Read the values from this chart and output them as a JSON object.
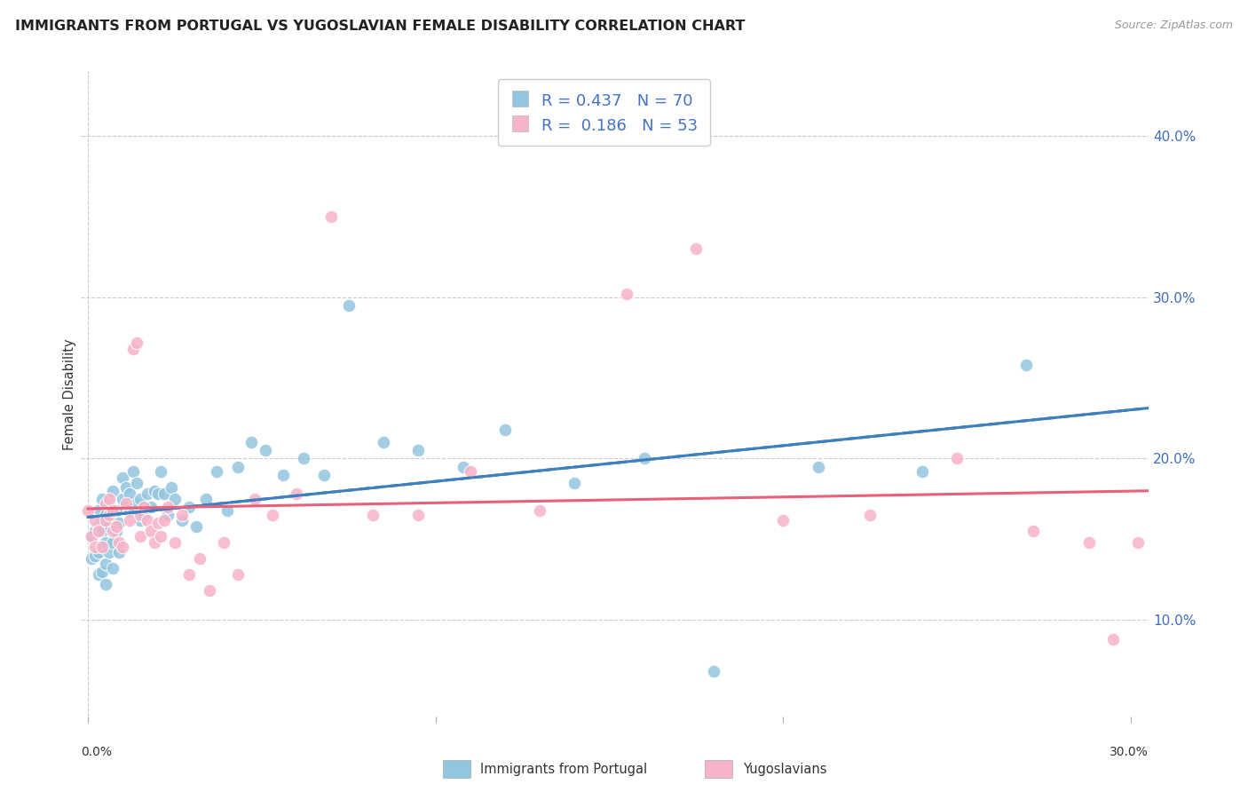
{
  "title": "IMMIGRANTS FROM PORTUGAL VS YUGOSLAVIAN FEMALE DISABILITY CORRELATION CHART",
  "source": "Source: ZipAtlas.com",
  "ylabel": "Female Disability",
  "ytick_labels": [
    "10.0%",
    "20.0%",
    "30.0%",
    "40.0%"
  ],
  "ytick_values": [
    0.1,
    0.2,
    0.3,
    0.4
  ],
  "xtick_labels": [
    "0.0%",
    "30.0%"
  ],
  "xtick_values": [
    0.0,
    0.3
  ],
  "xlim": [
    -0.002,
    0.305
  ],
  "ylim": [
    0.04,
    0.44
  ],
  "legend_label1": "Immigrants from Portugal",
  "legend_label2": "Yugoslavians",
  "R1": 0.437,
  "N1": 70,
  "R2": 0.186,
  "N2": 53,
  "color_blue": "#92c5de",
  "color_pink": "#f7b3c8",
  "color_blue_line": "#3d7fbf",
  "color_pink_line": "#e8607a",
  "color_dashed": "#888888",
  "background": "#ffffff",
  "grid_color": "#cccccc",
  "portugal_x": [
    0.001,
    0.001,
    0.002,
    0.002,
    0.003,
    0.003,
    0.003,
    0.003,
    0.004,
    0.004,
    0.004,
    0.004,
    0.004,
    0.005,
    0.005,
    0.005,
    0.005,
    0.006,
    0.006,
    0.006,
    0.007,
    0.007,
    0.007,
    0.008,
    0.008,
    0.009,
    0.009,
    0.01,
    0.01,
    0.011,
    0.012,
    0.012,
    0.013,
    0.014,
    0.014,
    0.015,
    0.015,
    0.016,
    0.017,
    0.018,
    0.019,
    0.02,
    0.021,
    0.022,
    0.023,
    0.024,
    0.025,
    0.027,
    0.029,
    0.031,
    0.034,
    0.037,
    0.04,
    0.043,
    0.047,
    0.051,
    0.056,
    0.062,
    0.068,
    0.075,
    0.085,
    0.095,
    0.108,
    0.12,
    0.14,
    0.16,
    0.18,
    0.21,
    0.24,
    0.27
  ],
  "portugal_y": [
    0.138,
    0.152,
    0.14,
    0.155,
    0.128,
    0.142,
    0.158,
    0.168,
    0.13,
    0.145,
    0.155,
    0.162,
    0.175,
    0.122,
    0.135,
    0.148,
    0.165,
    0.142,
    0.158,
    0.172,
    0.132,
    0.148,
    0.18,
    0.155,
    0.168,
    0.142,
    0.16,
    0.175,
    0.188,
    0.182,
    0.168,
    0.178,
    0.192,
    0.172,
    0.185,
    0.162,
    0.175,
    0.165,
    0.178,
    0.17,
    0.18,
    0.178,
    0.192,
    0.178,
    0.165,
    0.182,
    0.175,
    0.162,
    0.17,
    0.158,
    0.175,
    0.192,
    0.168,
    0.195,
    0.21,
    0.205,
    0.19,
    0.2,
    0.19,
    0.295,
    0.21,
    0.205,
    0.195,
    0.218,
    0.185,
    0.2,
    0.068,
    0.195,
    0.192,
    0.258
  ],
  "yugoslav_x": [
    0.001,
    0.002,
    0.002,
    0.003,
    0.004,
    0.005,
    0.005,
    0.006,
    0.006,
    0.007,
    0.007,
    0.008,
    0.009,
    0.01,
    0.011,
    0.012,
    0.013,
    0.014,
    0.015,
    0.015,
    0.016,
    0.017,
    0.018,
    0.019,
    0.02,
    0.021,
    0.022,
    0.023,
    0.025,
    0.027,
    0.029,
    0.032,
    0.035,
    0.039,
    0.043,
    0.048,
    0.053,
    0.06,
    0.07,
    0.082,
    0.095,
    0.11,
    0.13,
    0.155,
    0.175,
    0.2,
    0.225,
    0.25,
    0.272,
    0.288,
    0.295,
    0.302,
    0.0
  ],
  "yugoslav_y": [
    0.152,
    0.145,
    0.162,
    0.155,
    0.145,
    0.162,
    0.172,
    0.165,
    0.175,
    0.155,
    0.168,
    0.158,
    0.148,
    0.145,
    0.172,
    0.162,
    0.268,
    0.272,
    0.152,
    0.165,
    0.17,
    0.162,
    0.155,
    0.148,
    0.16,
    0.152,
    0.162,
    0.17,
    0.148,
    0.165,
    0.128,
    0.138,
    0.118,
    0.148,
    0.128,
    0.175,
    0.165,
    0.178,
    0.35,
    0.165,
    0.165,
    0.192,
    0.168,
    0.302,
    0.33,
    0.162,
    0.165,
    0.2,
    0.155,
    0.148,
    0.088,
    0.148,
    0.168
  ]
}
